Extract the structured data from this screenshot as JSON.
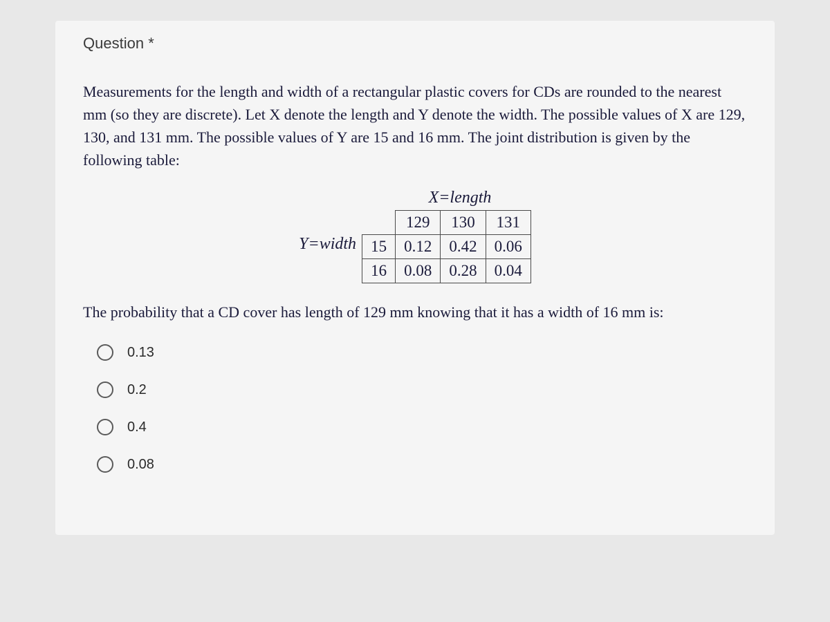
{
  "header": {
    "title": "Question",
    "required_marker": "*"
  },
  "question": {
    "intro": "Measurements for the length and width of a rectangular plastic covers for CDs are rounded to the nearest mm (so they are discrete). Let X denote the length and Y denote the width. The possible values of X are 129, 130, and 131 mm. The possible values of Y are 15 and 16 mm. The joint distribution is given by the following table:",
    "followup": "The probability that a CD cover has length of 129 mm knowing that it has a width of 16 mm is:"
  },
  "table": {
    "x_axis_label": "X=length",
    "y_axis_label": "Y=width",
    "columns": [
      "129",
      "130",
      "131"
    ],
    "row_headers": [
      "15",
      "16"
    ],
    "rows": [
      [
        "0.12",
        "0.42",
        "0.06"
      ],
      [
        "0.08",
        "0.28",
        "0.04"
      ]
    ],
    "border_color": "#4a4a4a",
    "text_color": "#1a1a3a",
    "font_size": 23
  },
  "options": [
    {
      "label": "0.13"
    },
    {
      "label": "0.2"
    },
    {
      "label": "0.4"
    },
    {
      "label": "0.08"
    }
  ],
  "styling": {
    "background_color": "#e8e8e8",
    "container_bg": "#f5f5f5",
    "text_color": "#1a1a3a",
    "radio_border": "#5a5a5a"
  }
}
